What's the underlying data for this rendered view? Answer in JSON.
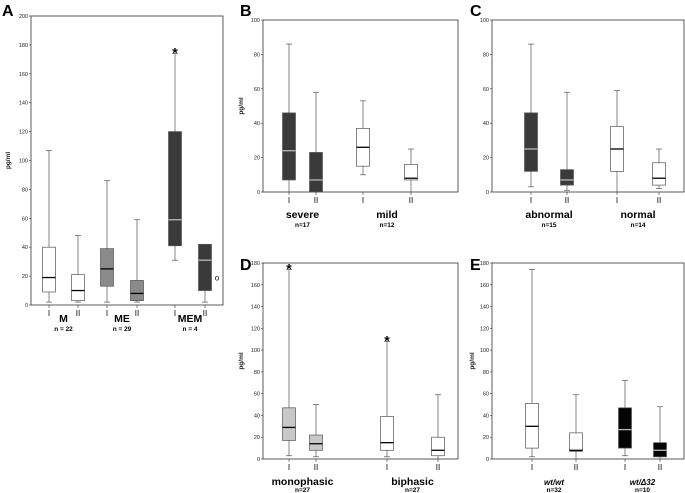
{
  "colors": {
    "white": "#ffffff",
    "light": "#c8c8c8",
    "mid": "#8a8a8a",
    "dark": "#3a3a3a",
    "black": "#050505",
    "median_on_dark": "#b8b8b8",
    "median_on_light": "#000000"
  },
  "chart_data": [
    {
      "panel": "A",
      "type": "box",
      "ylabel": "pg/ml",
      "ylim": [
        0,
        200
      ],
      "yticks": [
        "0",
        "20",
        "40",
        "60",
        "80",
        "100",
        "120",
        "140",
        "160",
        "180",
        "200"
      ],
      "groups": [
        {
          "label": "M",
          "n": "n = 22",
          "sublabels": [
            "I",
            "II"
          ],
          "boxes": [
            {
              "min": 2,
              "q1": 9,
              "median": 19,
              "q3": 40,
              "max": 107,
              "fill": "white"
            },
            {
              "min": 2,
              "q1": 3,
              "median": 10,
              "q3": 21,
              "max": 48,
              "fill": "white"
            }
          ]
        },
        {
          "label": "ME",
          "n": "n = 29",
          "sublabels": [
            "I",
            "II"
          ],
          "boxes": [
            {
              "min": 2,
              "q1": 13,
              "median": 25,
              "q3": 39,
              "max": 86,
              "fill": "mid"
            },
            {
              "min": 2,
              "q1": 3,
              "median": 8,
              "q3": 17,
              "max": 59,
              "fill": "mid"
            }
          ]
        },
        {
          "label": "MEM",
          "n": "n = 4",
          "sublabels": [
            "I",
            "II"
          ],
          "boxes": [
            {
              "min": 31,
              "q1": 41,
              "median": 59,
              "q3": 120,
              "max": 174,
              "fill": "dark",
              "star": "*"
            },
            {
              "min": 2,
              "q1": 10,
              "median": 31,
              "q3": 42,
              "max": 42,
              "fill": "dark",
              "outlier": "o",
              "outlier_value": 19
            }
          ]
        }
      ]
    },
    {
      "panel": "B",
      "type": "box",
      "ylabel": "pg/ml",
      "ylim": [
        0,
        100
      ],
      "yticks": [
        "0",
        "20",
        "40",
        "60",
        "80",
        "100"
      ],
      "groups": [
        {
          "label": "severe",
          "n": "n=17",
          "sublabels": [
            "I",
            "II"
          ],
          "boxes": [
            {
              "min": 0,
              "q1": 7,
              "median": 24,
              "q3": 46,
              "max": 86,
              "fill": "dark"
            },
            {
              "min": 0,
              "q1": 0,
              "median": 7,
              "q3": 23,
              "max": 58,
              "fill": "dark"
            }
          ]
        },
        {
          "label": "mild",
          "n": "n=12",
          "sublabels": [
            "I",
            "II"
          ],
          "boxes": [
            {
              "min": 10,
              "q1": 15,
              "median": 26,
              "q3": 37,
              "max": 53,
              "fill": "white"
            },
            {
              "min": 0,
              "q1": 7,
              "median": 8,
              "q3": 16,
              "max": 25,
              "fill": "white"
            }
          ]
        }
      ]
    },
    {
      "panel": "C",
      "type": "box",
      "ylabel": "",
      "ylim": [
        0,
        100
      ],
      "yticks": [
        "0",
        "20",
        "40",
        "60",
        "80",
        "100"
      ],
      "groups": [
        {
          "label": "abnormal",
          "n": "n=15",
          "sublabels": [
            "I",
            "II"
          ],
          "boxes": [
            {
              "min": 3,
              "q1": 12,
              "median": 25,
              "q3": 46,
              "max": 86,
              "fill": "dark"
            },
            {
              "min": 1,
              "q1": 4,
              "median": 7,
              "q3": 13,
              "max": 58,
              "fill": "dark"
            }
          ]
        },
        {
          "label": "normal",
          "n": "n=14",
          "sublabels": [
            "I",
            "II"
          ],
          "boxes": [
            {
              "min": 0,
              "q1": 12,
              "median": 25,
              "q3": 38,
              "max": 59,
              "fill": "white"
            },
            {
              "min": 2,
              "q1": 4,
              "median": 8,
              "q3": 17,
              "max": 25,
              "fill": "white"
            }
          ]
        }
      ]
    },
    {
      "panel": "D",
      "type": "box",
      "ylabel": "pg/ml",
      "ylim": [
        0,
        180
      ],
      "yticks": [
        "0",
        "20",
        "40",
        "60",
        "80",
        "100",
        "120",
        "140",
        "160",
        "180"
      ],
      "groups": [
        {
          "label": "monophasic",
          "n": "n=27",
          "sublabels": [
            "I",
            "II"
          ],
          "boxes": [
            {
              "min": 3,
              "q1": 17,
              "median": 29,
              "q3": 47,
              "max": 174,
              "fill": "light",
              "star": "*"
            },
            {
              "min": 2,
              "q1": 8,
              "median": 14,
              "q3": 22,
              "max": 50,
              "fill": "light"
            }
          ]
        },
        {
          "label": "biphasic",
          "n": "n=27",
          "sublabels": [
            "I",
            "II"
          ],
          "boxes": [
            {
              "min": 2,
              "q1": 8,
              "median": 15,
              "q3": 39,
              "max": 108,
              "fill": "white",
              "star": "*"
            },
            {
              "min": 0,
              "q1": 3,
              "median": 8,
              "q3": 20,
              "max": 59,
              "fill": "white"
            }
          ]
        }
      ]
    },
    {
      "panel": "E",
      "type": "box",
      "ylabel": "pg/ml",
      "ylim": [
        0,
        180
      ],
      "yticks": [
        "0",
        "20",
        "40",
        "60",
        "80",
        "100",
        "120",
        "140",
        "160",
        "180"
      ],
      "groups": [
        {
          "label": "wt/wt",
          "n": "n=32",
          "sublabels": [
            "I",
            "II"
          ],
          "boxes": [
            {
              "min": 2,
              "q1": 10,
              "median": 30,
              "q3": 51,
              "max": 174,
              "fill": "white"
            },
            {
              "min": 0,
              "q1": 7,
              "median": 8,
              "q3": 24,
              "max": 59,
              "fill": "white"
            }
          ]
        },
        {
          "label": "wt/Δ32",
          "n": "n=10",
          "sublabels": [
            "I",
            "II"
          ],
          "boxes": [
            {
              "min": 3,
              "q1": 10,
              "median": 27,
              "q3": 47,
              "max": 72,
              "fill": "black"
            },
            {
              "min": 0,
              "q1": 2,
              "median": 8,
              "q3": 15,
              "max": 48,
              "fill": "black"
            }
          ]
        }
      ]
    }
  ]
}
